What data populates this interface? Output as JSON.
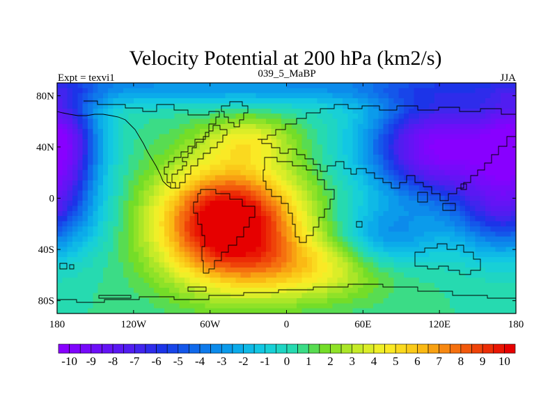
{
  "chart_data": {
    "type": "heatmap",
    "title": "Velocity Potential at 200 hPa (km2/s)",
    "subtitle_left": "Expt = texvi1",
    "subtitle_center": "039_5_MaBP",
    "subtitle_right": "JJA",
    "x_ticks": [
      {
        "value": -180,
        "label": "180"
      },
      {
        "value": -120,
        "label": "120W"
      },
      {
        "value": -60,
        "label": "60W"
      },
      {
        "value": 0,
        "label": "0"
      },
      {
        "value": 60,
        "label": "60E"
      },
      {
        "value": 120,
        "label": "120E"
      },
      {
        "value": 180,
        "label": "180"
      }
    ],
    "y_ticks": [
      {
        "value": 80,
        "label": "80N"
      },
      {
        "value": 40,
        "label": "40N"
      },
      {
        "value": 0,
        "label": "0"
      },
      {
        "value": -40,
        "label": "40S"
      },
      {
        "value": -80,
        "label": "80S"
      }
    ],
    "xlim": [
      -180,
      180
    ],
    "ylim": [
      -90,
      90
    ],
    "colorbar": {
      "min": -10.5,
      "max": 10.5,
      "step": 0.5,
      "labels": [
        "-10",
        "-9",
        "-8",
        "-7",
        "-6",
        "-5",
        "-4",
        "-3",
        "-2",
        "-1",
        "0",
        "1",
        "2",
        "3",
        "4",
        "5",
        "6",
        "7",
        "8",
        "9",
        "10"
      ],
      "label_values": [
        -10,
        -9,
        -8,
        -7,
        -6,
        -5,
        -4,
        -3,
        -2,
        -1,
        0,
        1,
        2,
        3,
        4,
        5,
        6,
        7,
        8,
        9,
        10
      ]
    },
    "field_centers": [
      {
        "name": "divergent maximum",
        "lon": -45,
        "lat": -20,
        "value": 10.3
      },
      {
        "name": "convergent minimum (Asia-Pacific)",
        "lon": 120,
        "lat": 40,
        "value": -10.3
      },
      {
        "name": "convergent minimum (east Pacific)",
        "lon": -178,
        "lat": 45,
        "value": -9.5
      }
    ],
    "colors": {
      "background": "#ffffff",
      "coastline": "#000000"
    }
  }
}
